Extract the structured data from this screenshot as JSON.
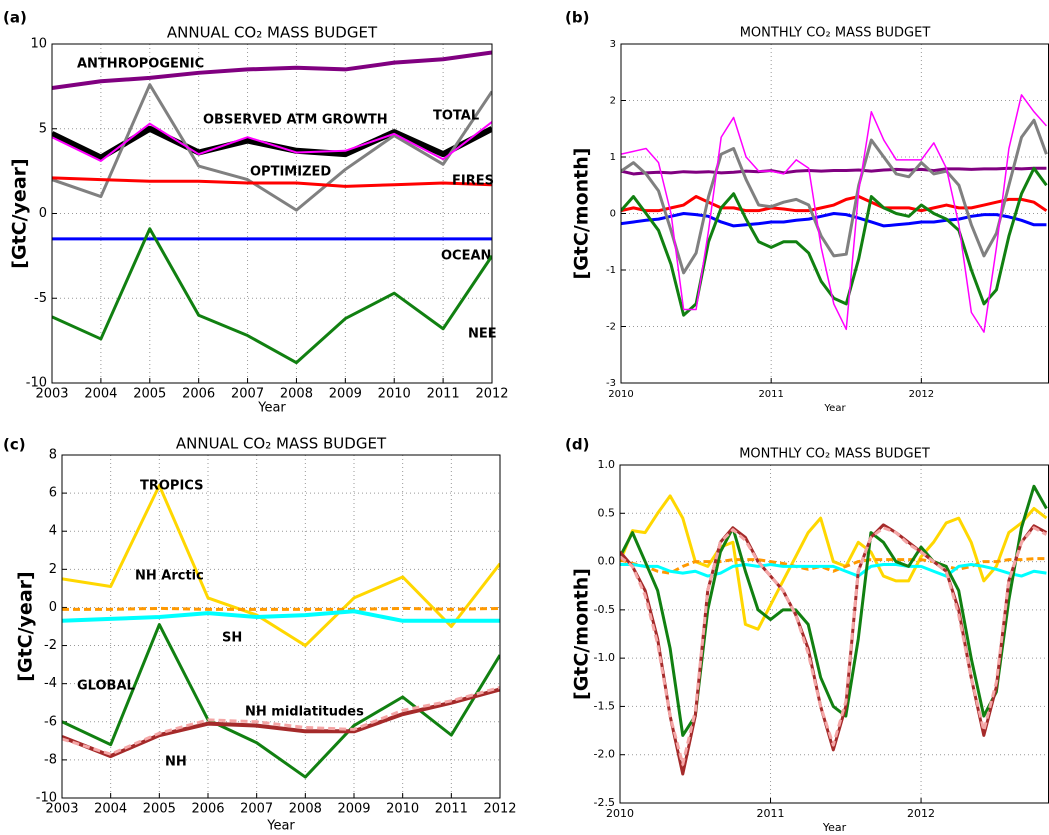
{
  "chart_data": [
    {
      "type": "line",
      "panel_label": "(a)",
      "title": "ANNUAL CO₂ MASS BUDGET",
      "xlabel": "Year",
      "ylabel": "[GtC/year]",
      "x": [
        2003,
        2004,
        2005,
        2006,
        2007,
        2008,
        2009,
        2010,
        2011,
        2012
      ],
      "xlim": [
        2003,
        2012
      ],
      "xticks": [
        2003,
        2004,
        2005,
        2006,
        2007,
        2008,
        2009,
        2010,
        2011,
        2012
      ],
      "ylim": [
        -10,
        10
      ],
      "yticks": [
        -10,
        -5,
        0,
        5,
        10
      ],
      "grid": true,
      "series": [
        {
          "name": "ANTHROPOGENIC",
          "color": "#800080",
          "values": [
            7.4,
            7.8,
            8.0,
            8.3,
            8.5,
            8.6,
            8.5,
            8.9,
            9.1,
            9.5
          ]
        },
        {
          "name": "OBSERVED ATM GROWTH",
          "color": "#000000",
          "values": [
            4.7,
            3.3,
            5.0,
            3.6,
            4.3,
            3.7,
            3.5,
            4.8,
            3.5,
            5.0
          ]
        },
        {
          "name": "TOTAL",
          "color": "#808080",
          "values": [
            2.0,
            1.0,
            7.6,
            2.8,
            2.0,
            0.2,
            2.6,
            4.6,
            2.9,
            7.2
          ]
        },
        {
          "name": "OPTIMIZED",
          "color": "#ff00ff",
          "values": [
            4.5,
            3.1,
            5.3,
            3.5,
            4.5,
            3.6,
            3.7,
            4.7,
            3.2,
            5.4
          ]
        },
        {
          "name": "FIRES",
          "color": "#ff0000",
          "values": [
            2.1,
            2.0,
            1.9,
            1.9,
            1.8,
            1.8,
            1.6,
            1.7,
            1.8,
            1.7
          ]
        },
        {
          "name": "OCEAN",
          "color": "#0000ff",
          "values": [
            -1.5,
            -1.5,
            -1.5,
            -1.5,
            -1.5,
            -1.5,
            -1.5,
            -1.5,
            -1.5,
            -1.5
          ]
        },
        {
          "name": "NEE",
          "color": "#118011",
          "values": [
            -6.1,
            -7.4,
            -0.9,
            -6.0,
            -7.2,
            -8.8,
            -6.2,
            -4.7,
            -6.8,
            -2.5
          ]
        }
      ]
    },
    {
      "type": "line",
      "panel_label": "(b)",
      "title": "MONTHLY CO₂ MASS BUDGET",
      "xlabel": "Year",
      "ylabel": "[GtC/month]",
      "x": [
        2010,
        2010.083,
        2010.167,
        2010.25,
        2010.333,
        2010.417,
        2010.5,
        2010.583,
        2010.667,
        2010.75,
        2010.833,
        2010.917,
        2011,
        2011.083,
        2011.167,
        2011.25,
        2011.333,
        2011.417,
        2011.5,
        2011.583,
        2011.667,
        2011.75,
        2011.833,
        2011.917,
        2012,
        2012.083,
        2012.167,
        2012.25,
        2012.333,
        2012.417,
        2012.5,
        2012.583,
        2012.667,
        2012.75,
        2012.833
      ],
      "xlim": [
        2010,
        2012.85
      ],
      "xticks": [
        2010,
        2011,
        2012
      ],
      "ylim": [
        -3,
        3
      ],
      "yticks": [
        -3,
        -2,
        -1,
        0,
        1,
        2,
        3
      ],
      "grid": true,
      "series": [
        {
          "color": "#800080",
          "values": [
            0.75,
            0.7,
            0.72,
            0.73,
            0.72,
            0.74,
            0.73,
            0.74,
            0.72,
            0.73,
            0.75,
            0.74,
            0.76,
            0.72,
            0.75,
            0.76,
            0.75,
            0.76,
            0.76,
            0.77,
            0.75,
            0.77,
            0.78,
            0.77,
            0.78,
            0.76,
            0.79,
            0.79,
            0.78,
            0.79,
            0.79,
            0.8,
            0.79,
            0.8,
            0.8
          ]
        },
        {
          "color": "#ff0000",
          "values": [
            0.05,
            0.1,
            0.05,
            0.05,
            0.1,
            0.15,
            0.3,
            0.2,
            0.1,
            0.1,
            0.05,
            0.05,
            0.1,
            0.08,
            0.05,
            0.05,
            0.1,
            0.15,
            0.25,
            0.3,
            0.2,
            0.1,
            0.1,
            0.1,
            0.05,
            0.1,
            0.15,
            0.1,
            0.1,
            0.15,
            0.2,
            0.25,
            0.25,
            0.2,
            0.05
          ]
        },
        {
          "color": "#0000ff",
          "values": [
            -0.18,
            -0.15,
            -0.12,
            -0.1,
            -0.05,
            0.0,
            -0.02,
            -0.05,
            -0.15,
            -0.22,
            -0.2,
            -0.18,
            -0.15,
            -0.15,
            -0.12,
            -0.1,
            -0.05,
            0.0,
            -0.02,
            -0.08,
            -0.15,
            -0.22,
            -0.2,
            -0.18,
            -0.15,
            -0.15,
            -0.12,
            -0.1,
            -0.05,
            -0.02,
            -0.02,
            -0.06,
            -0.12,
            -0.2,
            -0.2
          ]
        },
        {
          "color": "#118011",
          "values": [
            0.05,
            0.3,
            0.0,
            -0.3,
            -0.9,
            -1.8,
            -1.6,
            -0.5,
            0.1,
            0.35,
            -0.1,
            -0.5,
            -0.6,
            -0.5,
            -0.5,
            -0.7,
            -1.2,
            -1.5,
            -1.6,
            -0.8,
            0.3,
            0.1,
            0.0,
            -0.05,
            0.15,
            0.0,
            -0.1,
            -0.3,
            -1.0,
            -1.6,
            -1.35,
            -0.4,
            0.35,
            0.8,
            0.5
          ]
        },
        {
          "color": "#808080",
          "values": [
            0.75,
            0.9,
            0.7,
            0.4,
            -0.3,
            -1.05,
            -0.7,
            0.3,
            1.05,
            1.15,
            0.6,
            0.15,
            0.12,
            0.2,
            0.25,
            0.15,
            -0.4,
            -0.75,
            -0.72,
            0.5,
            1.3,
            1.0,
            0.7,
            0.65,
            0.9,
            0.7,
            0.75,
            0.5,
            -0.2,
            -0.75,
            -0.35,
            0.5,
            1.35,
            1.65,
            1.05
          ]
        },
        {
          "color": "#ff00ff",
          "values": [
            1.05,
            1.1,
            1.15,
            0.9,
            0.0,
            -1.7,
            -1.7,
            -0.3,
            1.35,
            1.7,
            1.0,
            0.75,
            0.75,
            0.7,
            0.95,
            0.8,
            -0.6,
            -1.6,
            -2.05,
            0.4,
            1.8,
            1.3,
            0.95,
            0.95,
            0.95,
            1.25,
            0.8,
            -0.2,
            -1.75,
            -2.1,
            -0.6,
            1.15,
            2.1,
            1.8,
            1.55
          ]
        }
      ]
    },
    {
      "type": "line",
      "panel_label": "(c)",
      "title": "ANNUAL CO₂ MASS BUDGET",
      "xlabel": "Year",
      "ylabel": "[GtC/year]",
      "x": [
        2003,
        2004,
        2005,
        2006,
        2007,
        2008,
        2009,
        2010,
        2011,
        2012
      ],
      "xlim": [
        2003,
        2012
      ],
      "xticks": [
        2003,
        2004,
        2005,
        2006,
        2007,
        2008,
        2009,
        2010,
        2011,
        2012
      ],
      "ylim": [
        -10,
        8
      ],
      "yticks": [
        -10,
        -8,
        -6,
        -4,
        -2,
        0,
        2,
        4,
        6,
        8
      ],
      "grid": true,
      "series": [
        {
          "name": "TROPICS",
          "color": "#ffd700",
          "values": [
            1.5,
            1.1,
            6.4,
            0.5,
            -0.4,
            -2.0,
            0.5,
            1.6,
            -1.0,
            2.3
          ]
        },
        {
          "name": "NH Arctic",
          "color": "#ff9900",
          "style": "dashed",
          "values": [
            -0.1,
            -0.1,
            -0.05,
            -0.1,
            -0.1,
            -0.1,
            -0.1,
            -0.05,
            -0.1,
            -0.05
          ]
        },
        {
          "name": "SH",
          "color": "#00ffff",
          "values": [
            -0.7,
            -0.6,
            -0.5,
            -0.3,
            -0.5,
            -0.4,
            -0.2,
            -0.7,
            -0.7,
            -0.7
          ]
        },
        {
          "name": "GLOBAL",
          "color": "#118011",
          "values": [
            -6.0,
            -7.2,
            -0.9,
            -5.9,
            -7.1,
            -8.9,
            -6.2,
            -4.7,
            -6.7,
            -2.5
          ]
        },
        {
          "name": "NH",
          "color": "#a52a2a",
          "values": [
            -6.8,
            -7.8,
            -6.7,
            -6.1,
            -6.2,
            -6.5,
            -6.5,
            -5.6,
            -5.0,
            -4.3
          ]
        },
        {
          "name": "NH midlatitudes",
          "color": "#f4a6a6",
          "style": "dashed",
          "values": [
            -6.9,
            -7.7,
            -6.6,
            -5.9,
            -6.0,
            -6.3,
            -6.4,
            -5.4,
            -4.9,
            -4.2
          ]
        }
      ]
    },
    {
      "type": "line",
      "panel_label": "(d)",
      "title": "MONTHLY CO₂ MASS BUDGET",
      "xlabel": "Year",
      "ylabel": "[GtC/month]",
      "x": [
        2010,
        2010.083,
        2010.167,
        2010.25,
        2010.333,
        2010.417,
        2010.5,
        2010.583,
        2010.667,
        2010.75,
        2010.833,
        2010.917,
        2011,
        2011.083,
        2011.167,
        2011.25,
        2011.333,
        2011.417,
        2011.5,
        2011.583,
        2011.667,
        2011.75,
        2011.833,
        2011.917,
        2012,
        2012.083,
        2012.167,
        2012.25,
        2012.333,
        2012.417,
        2012.5,
        2012.583,
        2012.667,
        2012.75,
        2012.833
      ],
      "xlim": [
        2010,
        2012.85
      ],
      "xticks": [
        2010,
        2011,
        2012
      ],
      "ylim": [
        -2.5,
        1.0
      ],
      "yticks": [
        -2.5,
        {
          "value": -2,
          "label": "-2.0"
        },
        -1.5,
        {
          "value": -1,
          "label": "-1.0"
        },
        -0.5,
        {
          "value": 0,
          "label": "0.0"
        },
        0.5,
        {
          "value": 1,
          "label": "1.0"
        }
      ],
      "grid": true,
      "series": [
        {
          "color": "#ffd700",
          "values": [
            0.0,
            0.32,
            0.3,
            0.5,
            0.68,
            0.45,
            0.0,
            -0.05,
            0.15,
            0.2,
            -0.65,
            -0.7,
            -0.45,
            -0.2,
            0.05,
            0.3,
            0.45,
            0.0,
            -0.05,
            0.2,
            0.1,
            -0.15,
            -0.2,
            -0.2,
            0.05,
            0.2,
            0.4,
            0.45,
            0.2,
            -0.2,
            -0.05,
            0.3,
            0.4,
            0.55,
            0.45
          ]
        },
        {
          "color": "#ff9900",
          "style": "dashed",
          "values": [
            0.02,
            -0.02,
            -0.05,
            -0.1,
            -0.12,
            -0.05,
            0.0,
            0.0,
            0.0,
            0.02,
            0.02,
            0.02,
            0.0,
            -0.02,
            -0.05,
            -0.08,
            -0.05,
            -0.1,
            -0.05,
            0.0,
            0.02,
            0.02,
            0.02,
            0.02,
            0.02,
            0.0,
            -0.05,
            -0.08,
            -0.05,
            0.0,
            0.0,
            0.02,
            0.02,
            0.03,
            0.03
          ]
        },
        {
          "color": "#00ffff",
          "values": [
            -0.03,
            -0.03,
            -0.05,
            -0.05,
            -0.1,
            -0.12,
            -0.1,
            -0.15,
            -0.12,
            -0.05,
            -0.03,
            -0.05,
            -0.03,
            -0.05,
            -0.05,
            -0.05,
            -0.05,
            -0.05,
            -0.1,
            -0.15,
            -0.05,
            -0.03,
            -0.03,
            -0.05,
            -0.05,
            -0.1,
            -0.15,
            -0.05,
            -0.03,
            -0.05,
            -0.08,
            -0.12,
            -0.15,
            -0.1,
            -0.12
          ]
        },
        {
          "color": "#118011",
          "values": [
            0.05,
            0.3,
            0.0,
            -0.3,
            -0.9,
            -1.8,
            -1.6,
            -0.5,
            0.1,
            0.35,
            -0.1,
            -0.5,
            -0.6,
            -0.5,
            -0.5,
            -0.65,
            -1.2,
            -1.5,
            -1.6,
            -0.8,
            0.3,
            0.2,
            0.0,
            -0.05,
            0.15,
            0.0,
            -0.05,
            -0.3,
            -1.0,
            -1.6,
            -1.35,
            -0.4,
            0.35,
            0.78,
            0.55
          ]
        },
        {
          "color": "#a52a2a",
          "values": [
            0.1,
            -0.05,
            -0.3,
            -0.8,
            -1.6,
            -2.2,
            -1.6,
            -0.3,
            0.2,
            0.35,
            0.25,
            0.0,
            -0.15,
            -0.3,
            -0.55,
            -0.9,
            -1.5,
            -1.95,
            -1.5,
            -0.1,
            0.25,
            0.38,
            0.3,
            0.2,
            0.1,
            0.0,
            -0.1,
            -0.5,
            -1.2,
            -1.8,
            -1.3,
            -0.2,
            0.2,
            0.37,
            0.3
          ]
        },
        {
          "color": "#f4a6a6",
          "style": "dashed",
          "values": [
            0.05,
            -0.05,
            -0.35,
            -0.85,
            -1.6,
            -2.1,
            -1.55,
            -0.3,
            0.2,
            0.33,
            0.22,
            0.0,
            -0.15,
            -0.3,
            -0.55,
            -0.95,
            -1.5,
            -1.9,
            -1.45,
            -0.1,
            0.25,
            0.35,
            0.3,
            0.18,
            0.1,
            0.0,
            -0.1,
            -0.55,
            -1.2,
            -1.75,
            -1.25,
            -0.2,
            0.2,
            0.35,
            0.28
          ]
        }
      ]
    }
  ]
}
